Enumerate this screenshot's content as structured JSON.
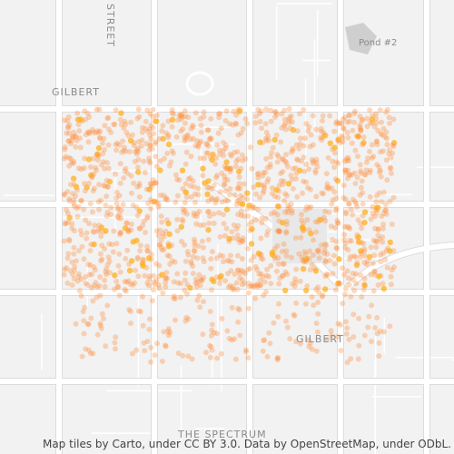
{
  "map": {
    "labels": {
      "street": "STREET",
      "pond": "Pond #2",
      "gilbert_north": "GILBERT",
      "gilbert_south": "GILBERT",
      "spectrum": "THE SPECTRUM"
    },
    "attribution": "Map tiles by Carto, under CC BY 3.0. Data by OpenStreetMap, under ODbL."
  }
}
